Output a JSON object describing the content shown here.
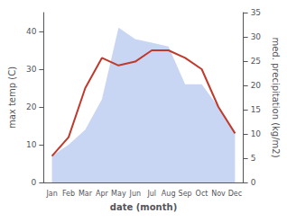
{
  "chart_data": {
    "type": "line",
    "categories": [
      "Jan",
      "Feb",
      "Mar",
      "Apr",
      "May",
      "Jun",
      "Jul",
      "Aug",
      "Sep",
      "Oct",
      "Nov",
      "Dec"
    ],
    "xlabel": "date (month)",
    "ylabel": "max temp (C)",
    "y2label": "med. precipitation (kg/m2)",
    "ylim": [
      0,
      45
    ],
    "yticks": [
      0,
      10,
      20,
      30,
      40
    ],
    "y2lim": [
      0,
      35
    ],
    "y2ticks": [
      0,
      5,
      10,
      15,
      20,
      25,
      30,
      35
    ],
    "grid": false,
    "series": [
      {
        "type": "area",
        "axis": "y2",
        "color": "#b0c4f0",
        "values": [
          5.444444444444445,
          7.777777777777778,
          10.88888888888889,
          17.11111111111111,
          31.88888888888889,
          29.555555555555557,
          28.77777777777778,
          28.0,
          20.22222222222222,
          20.22222222222222,
          15.555555555555557,
          10.11111111111111
        ]
      },
      {
        "type": "line",
        "color": "#c0392b",
        "values": [
          7,
          12,
          25,
          33,
          31,
          32,
          35,
          35,
          33,
          30,
          20,
          13
        ]
      }
    ]
  }
}
